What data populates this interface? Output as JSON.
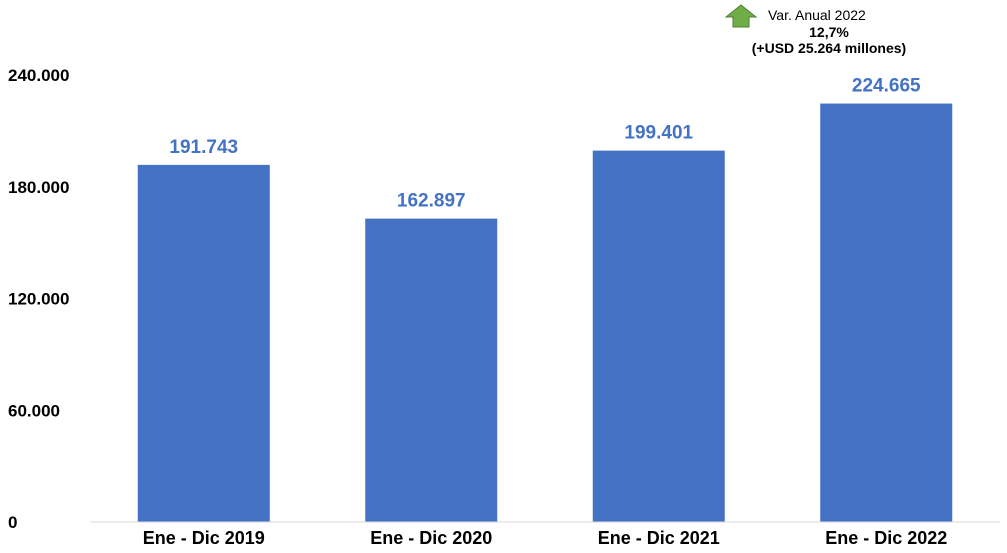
{
  "chart_data": {
    "type": "bar",
    "categories": [
      "Ene - Dic 2019",
      "Ene - Dic 2020",
      "Ene - Dic 2021",
      "Ene - Dic 2022"
    ],
    "values": [
      191743,
      162897,
      199401,
      224665
    ],
    "data_labels": [
      "191.743",
      "162.897",
      "199.401",
      "224.665"
    ],
    "yticks": [
      0,
      60000,
      120000,
      180000,
      240000
    ],
    "ytick_labels": [
      "0",
      "60.000",
      "120.000",
      "180.000",
      "240.000"
    ],
    "ylim": [
      0,
      240000
    ],
    "grid": false,
    "bar_color": "#4472C4",
    "label_color": "#4472C4",
    "annotation": {
      "icon": "up-arrow-icon",
      "icon_color": "#70AD47",
      "line1": "Var. Anual 2022",
      "line2": "12,7%",
      "line3": "(+USD 25.264 millones)"
    }
  }
}
